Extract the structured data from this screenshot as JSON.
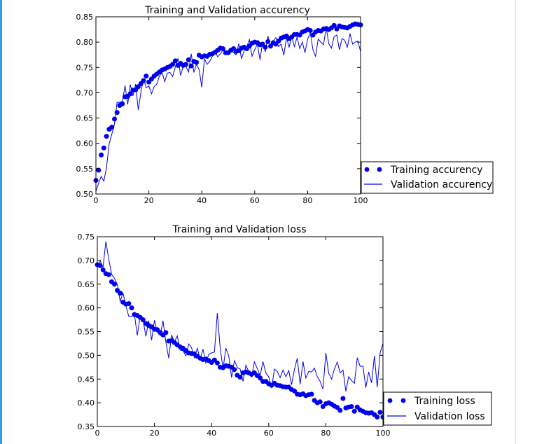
{
  "colors": {
    "series": "#0000ee",
    "frame": "#000000",
    "background": "#ffffff"
  },
  "chart_data": [
    {
      "type": "line",
      "title": "Training and Validation accurency",
      "xlabel": "",
      "ylabel": "",
      "xlim": [
        0,
        100
      ],
      "ylim": [
        0.5,
        0.85
      ],
      "xticks": [
        "0",
        "20",
        "40",
        "60",
        "80",
        "100"
      ],
      "yticks": [
        "0.50",
        "0.55",
        "0.60",
        "0.65",
        "0.70",
        "0.75",
        "0.80",
        "0.85"
      ],
      "grid": false,
      "legend_position": "outside-right-bottom",
      "series": [
        {
          "name": "Training accurency",
          "style": "markers",
          "values": [
            0.527,
            0.547,
            0.577,
            0.591,
            0.614,
            0.628,
            0.632,
            0.648,
            0.661,
            0.675,
            0.678,
            0.692,
            0.693,
            0.698,
            0.705,
            0.706,
            0.712,
            0.718,
            0.724,
            0.733,
            0.721,
            0.727,
            0.733,
            0.737,
            0.741,
            0.745,
            0.747,
            0.75,
            0.752,
            0.756,
            0.763,
            0.754,
            0.758,
            0.754,
            0.756,
            0.765,
            0.753,
            0.762,
            0.76,
            0.774,
            0.771,
            0.773,
            0.772,
            0.776,
            0.777,
            0.78,
            0.784,
            0.788,
            0.787,
            0.779,
            0.779,
            0.784,
            0.787,
            0.782,
            0.783,
            0.788,
            0.79,
            0.787,
            0.792,
            0.798,
            0.8,
            0.799,
            0.795,
            0.796,
            0.79,
            0.801,
            0.792,
            0.799,
            0.796,
            0.802,
            0.808,
            0.81,
            0.812,
            0.807,
            0.81,
            0.815,
            0.815,
            0.814,
            0.82,
            0.822,
            0.825,
            0.823,
            0.814,
            0.82,
            0.823,
            0.822,
            0.826,
            0.827,
            0.825,
            0.828,
            0.833,
            0.826,
            0.832,
            0.83,
            0.829,
            0.828,
            0.831,
            0.834,
            0.836,
            0.835,
            0.834
          ]
        },
        {
          "name": "Validation accurency",
          "style": "line",
          "values": [
            0.505,
            0.521,
            0.535,
            0.525,
            0.552,
            0.599,
            0.618,
            0.638,
            0.681,
            0.681,
            0.683,
            0.714,
            0.677,
            0.716,
            0.694,
            0.717,
            0.666,
            0.701,
            0.728,
            0.71,
            0.713,
            0.698,
            0.712,
            0.717,
            0.733,
            0.74,
            0.722,
            0.739,
            0.74,
            0.732,
            0.751,
            0.768,
            0.734,
            0.752,
            0.752,
            0.741,
            0.777,
            0.74,
            0.756,
            0.746,
            0.711,
            0.767,
            0.756,
            0.762,
            0.772,
            0.782,
            0.771,
            0.777,
            0.784,
            0.78,
            0.781,
            0.788,
            0.779,
            0.775,
            0.797,
            0.767,
            0.783,
            0.791,
            0.805,
            0.772,
            0.785,
            0.796,
            0.765,
            0.8,
            0.781,
            0.812,
            0.79,
            0.802,
            0.809,
            0.791,
            0.796,
            0.774,
            0.809,
            0.79,
            0.811,
            0.791,
            0.81,
            0.787,
            0.8,
            0.779,
            0.806,
            0.818,
            0.785,
            0.772,
            0.806,
            0.8,
            0.795,
            0.829,
            0.797,
            0.788,
            0.811,
            0.814,
            0.785,
            0.807,
            0.804,
            0.79,
            0.817,
            0.796,
            0.8,
            0.802,
            0.781
          ]
        }
      ]
    },
    {
      "type": "line",
      "title": "Training and Validation loss",
      "xlabel": "",
      "ylabel": "",
      "xlim": [
        0,
        100
      ],
      "ylim": [
        0.35,
        0.75
      ],
      "xticks": [
        "0",
        "20",
        "40",
        "60",
        "80",
        "100"
      ],
      "yticks": [
        "0.35",
        "0.40",
        "0.45",
        "0.50",
        "0.55",
        "0.60",
        "0.65",
        "0.70",
        "0.75"
      ],
      "grid": false,
      "legend_position": "outside-right-bottom",
      "series": [
        {
          "name": "Training loss",
          "style": "markers",
          "values": [
            0.691,
            0.689,
            0.68,
            0.672,
            0.67,
            0.655,
            0.65,
            0.637,
            0.631,
            0.612,
            0.608,
            0.609,
            0.6,
            0.586,
            0.584,
            0.58,
            0.575,
            0.567,
            0.563,
            0.56,
            0.555,
            0.554,
            0.548,
            0.543,
            0.548,
            0.53,
            0.531,
            0.527,
            0.522,
            0.518,
            0.515,
            0.51,
            0.505,
            0.504,
            0.503,
            0.498,
            0.494,
            0.491,
            0.492,
            0.489,
            0.485,
            0.49,
            0.484,
            0.475,
            0.474,
            0.478,
            0.477,
            0.475,
            0.47,
            0.458,
            0.454,
            0.463,
            0.465,
            0.463,
            0.46,
            0.463,
            0.457,
            0.452,
            0.445,
            0.445,
            0.44,
            0.437,
            0.441,
            0.437,
            0.436,
            0.434,
            0.433,
            0.433,
            0.428,
            0.425,
            0.418,
            0.417,
            0.419,
            0.415,
            0.417,
            0.418,
            0.405,
            0.4,
            0.402,
            0.392,
            0.398,
            0.4,
            0.397,
            0.393,
            0.39,
            0.384,
            0.409,
            0.389,
            0.391,
            0.392,
            0.382,
            0.391,
            0.385,
            0.382,
            0.379,
            0.378,
            0.379,
            0.375,
            0.37,
            0.38,
            0.37
          ]
        },
        {
          "name": "Validation loss",
          "style": "line",
          "values": [
            0.685,
            0.699,
            0.686,
            0.74,
            0.703,
            0.671,
            0.662,
            0.649,
            0.614,
            0.631,
            0.605,
            0.582,
            0.582,
            0.586,
            0.542,
            0.583,
            0.574,
            0.54,
            0.573,
            0.532,
            0.574,
            0.549,
            0.542,
            0.573,
            0.528,
            0.494,
            0.543,
            0.528,
            0.541,
            0.511,
            0.51,
            0.499,
            0.524,
            0.516,
            0.495,
            0.515,
            0.492,
            0.513,
            0.483,
            0.502,
            0.505,
            0.507,
            0.589,
            0.517,
            0.471,
            0.515,
            0.499,
            0.453,
            0.489,
            0.474,
            0.471,
            0.445,
            0.479,
            0.466,
            0.455,
            0.486,
            0.472,
            0.457,
            0.487,
            0.463,
            0.455,
            0.431,
            0.471,
            0.466,
            0.453,
            0.469,
            0.455,
            0.468,
            0.438,
            0.47,
            0.494,
            0.439,
            0.487,
            0.452,
            0.466,
            0.465,
            0.473,
            0.455,
            0.445,
            0.429,
            0.505,
            0.462,
            0.45,
            0.471,
            0.486,
            0.463,
            0.469,
            0.424,
            0.455,
            0.447,
            0.441,
            0.495,
            0.477,
            0.477,
            0.432,
            0.465,
            0.442,
            0.499,
            0.433,
            0.505,
            0.525
          ]
        }
      ]
    }
  ]
}
